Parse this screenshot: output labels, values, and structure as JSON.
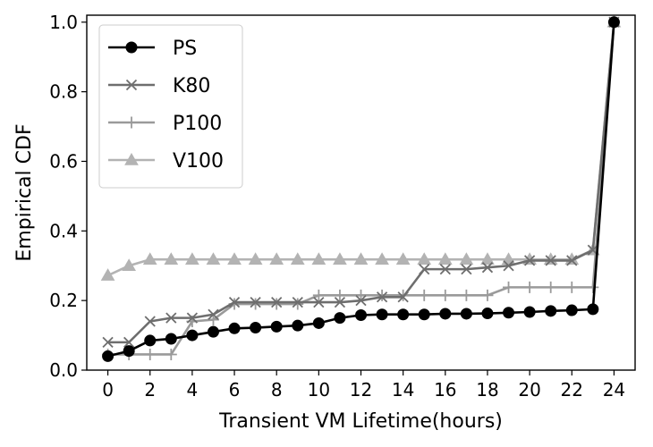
{
  "chart_data": {
    "type": "line",
    "title": "",
    "xlabel": "Transient VM Lifetime(hours)",
    "ylabel": "Empirical CDF",
    "xlim": [
      -1,
      25
    ],
    "ylim": [
      0,
      1.02
    ],
    "xticks": [
      0,
      2,
      4,
      6,
      8,
      10,
      12,
      14,
      16,
      18,
      20,
      22,
      24
    ],
    "yticks": [
      0.0,
      0.2,
      0.4,
      0.6,
      0.8,
      1.0
    ],
    "xtick_labels": [
      "0",
      "2",
      "4",
      "6",
      "8",
      "10",
      "12",
      "14",
      "16",
      "18",
      "20",
      "22",
      "24"
    ],
    "ytick_labels": [
      "0.0",
      "0.2",
      "0.4",
      "0.6",
      "0.8",
      "1.0"
    ],
    "grid": false,
    "legend_position": "top-left",
    "x": [
      0,
      1,
      2,
      3,
      4,
      5,
      6,
      7,
      8,
      9,
      10,
      11,
      12,
      13,
      14,
      15,
      16,
      17,
      18,
      19,
      20,
      21,
      22,
      23,
      24
    ],
    "series": [
      {
        "name": "PS",
        "color": "#000000",
        "marker": "circle",
        "values": [
          0.04,
          0.055,
          0.085,
          0.09,
          0.1,
          0.11,
          0.12,
          0.122,
          0.125,
          0.128,
          0.135,
          0.15,
          0.158,
          0.16,
          0.16,
          0.16,
          0.162,
          0.162,
          0.163,
          0.165,
          0.167,
          0.17,
          0.172,
          0.175,
          1.0
        ]
      },
      {
        "name": "K80",
        "color": "#6e6e6e",
        "marker": "x",
        "values": [
          0.08,
          0.08,
          0.14,
          0.15,
          0.15,
          0.16,
          0.195,
          0.195,
          0.195,
          0.195,
          0.195,
          0.195,
          0.2,
          0.21,
          0.21,
          0.29,
          0.29,
          0.29,
          0.295,
          0.3,
          0.315,
          0.315,
          0.315,
          0.345,
          1.0
        ]
      },
      {
        "name": "P100",
        "color": "#9a9a9a",
        "marker": "plus",
        "values": [
          0.045,
          0.045,
          0.045,
          0.045,
          0.14,
          0.145,
          0.19,
          0.19,
          0.19,
          0.19,
          0.215,
          0.215,
          0.215,
          0.215,
          0.215,
          0.215,
          0.215,
          0.215,
          0.215,
          0.238,
          0.238,
          0.238,
          0.238,
          0.238,
          1.0
        ]
      },
      {
        "name": "V100",
        "color": "#b3b3b3",
        "marker": "triangle",
        "values": [
          0.272,
          0.3,
          0.318,
          0.318,
          0.318,
          0.318,
          0.318,
          0.318,
          0.318,
          0.318,
          0.318,
          0.318,
          0.318,
          0.318,
          0.318,
          0.318,
          0.318,
          0.318,
          0.318,
          0.318,
          0.318,
          0.318,
          0.318,
          0.345,
          1.0
        ]
      }
    ]
  }
}
